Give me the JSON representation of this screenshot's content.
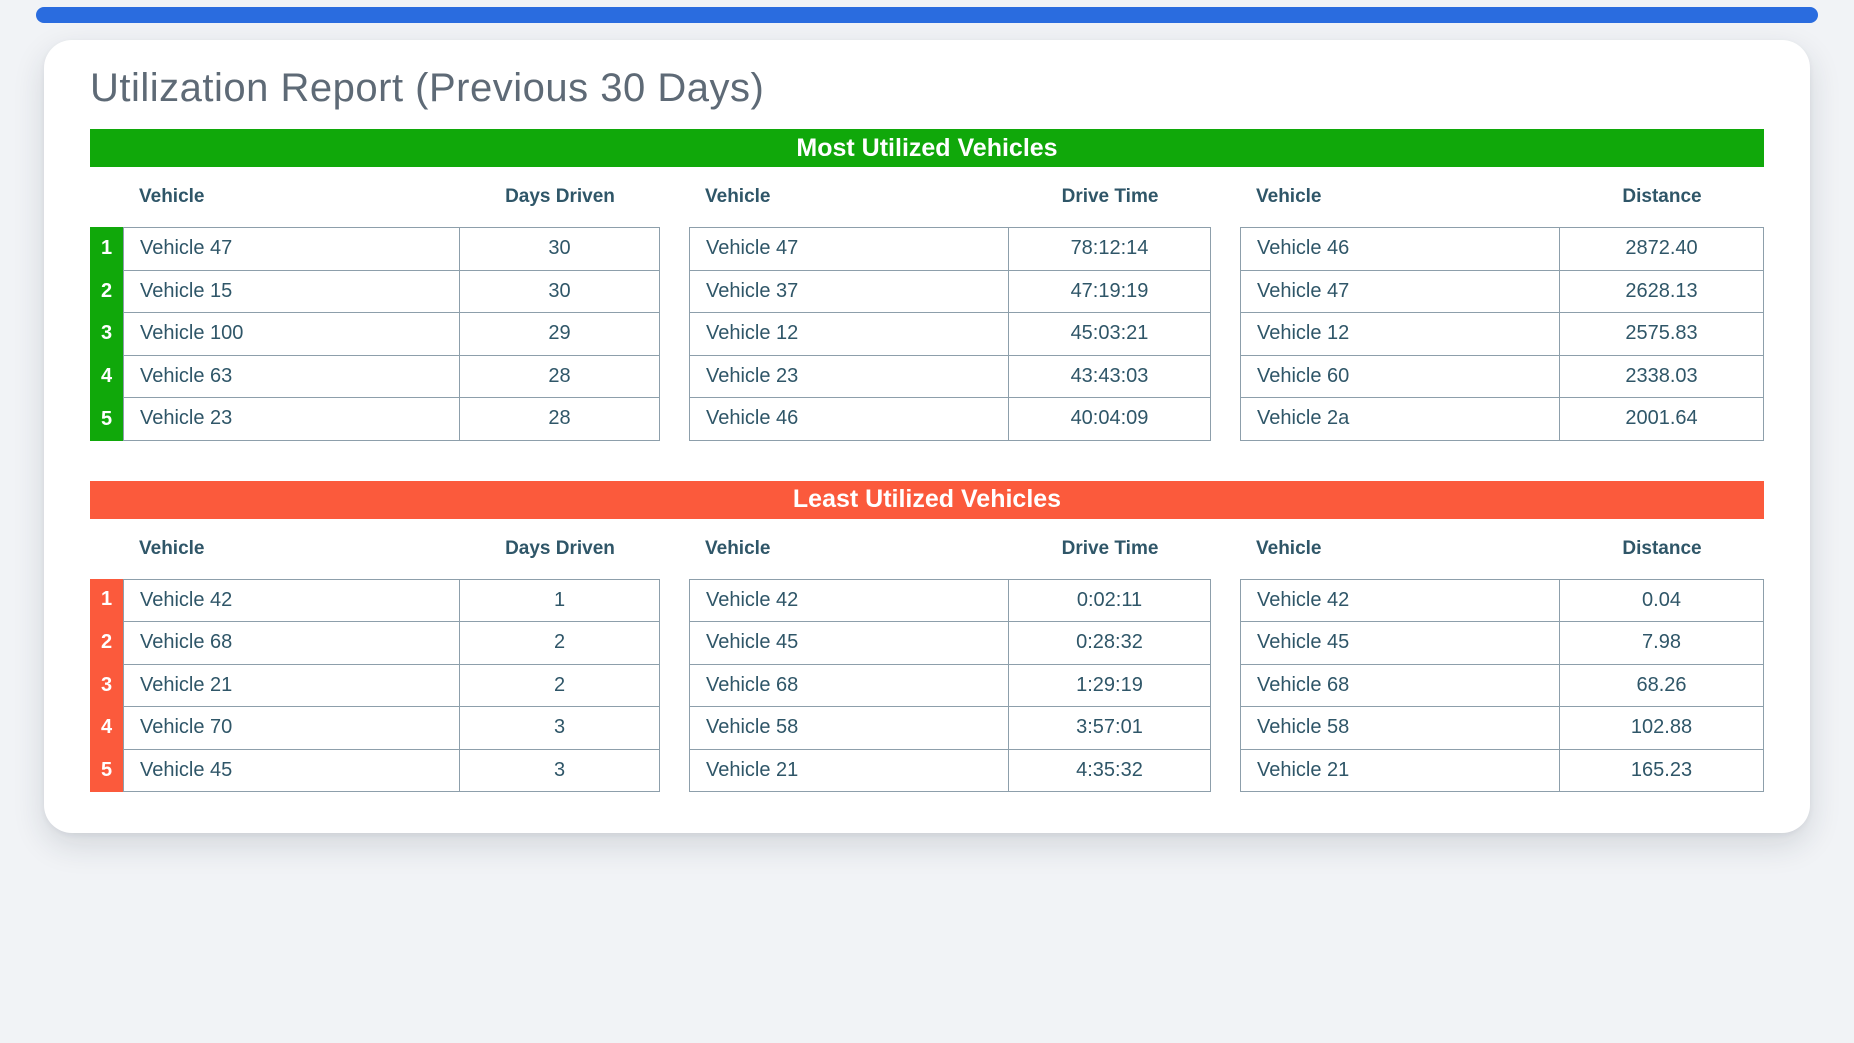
{
  "page": {
    "title": "Utilization Report (Previous 30 Days)"
  },
  "colors": {
    "top_bar_blue": "#2a6cdf",
    "most_accent_green": "#10a80a",
    "least_accent_orange": "#fb5a3c",
    "text_dark": "#2f5668",
    "title_gray": "#5e6a76",
    "table_border": "#8d9fab"
  },
  "ranks": [
    "1",
    "2",
    "3",
    "4",
    "5"
  ],
  "sections": [
    {
      "id": "most-utilized",
      "title": "Most Utilized Vehicles",
      "accent": "#10a80a",
      "tables": [
        {
          "key": "days-driven",
          "headers": [
            "Vehicle",
            "Days Driven"
          ],
          "ranked": true,
          "rows": [
            [
              "Vehicle 47",
              "30"
            ],
            [
              "Vehicle 15",
              "30"
            ],
            [
              "Vehicle 100",
              "29"
            ],
            [
              "Vehicle 63",
              "28"
            ],
            [
              "Vehicle 23",
              "28"
            ]
          ]
        },
        {
          "key": "drive-time",
          "headers": [
            "Vehicle",
            "Drive Time"
          ],
          "ranked": false,
          "rows": [
            [
              "Vehicle 47",
              "78:12:14"
            ],
            [
              "Vehicle 37",
              "47:19:19"
            ],
            [
              "Vehicle 12",
              "45:03:21"
            ],
            [
              "Vehicle 23",
              "43:43:03"
            ],
            [
              "Vehicle 46",
              "40:04:09"
            ]
          ]
        },
        {
          "key": "distance",
          "headers": [
            "Vehicle",
            "Distance"
          ],
          "ranked": false,
          "rows": [
            [
              "Vehicle 46",
              "2872.40"
            ],
            [
              "Vehicle 47",
              "2628.13"
            ],
            [
              "Vehicle 12",
              "2575.83"
            ],
            [
              "Vehicle 60",
              "2338.03"
            ],
            [
              "Vehicle 2a",
              "2001.64"
            ]
          ]
        }
      ]
    },
    {
      "id": "least-utilized",
      "title": "Least Utilized Vehicles",
      "accent": "#fb5a3c",
      "tables": [
        {
          "key": "days-driven",
          "headers": [
            "Vehicle",
            "Days Driven"
          ],
          "ranked": true,
          "rows": [
            [
              "Vehicle 42",
              "1"
            ],
            [
              "Vehicle 68",
              "2"
            ],
            [
              "Vehicle 21",
              "2"
            ],
            [
              "Vehicle 70",
              "3"
            ],
            [
              "Vehicle 45",
              "3"
            ]
          ]
        },
        {
          "key": "drive-time",
          "headers": [
            "Vehicle",
            "Drive Time"
          ],
          "ranked": false,
          "rows": [
            [
              "Vehicle 42",
              "0:02:11"
            ],
            [
              "Vehicle 45",
              "0:28:32"
            ],
            [
              "Vehicle 68",
              "1:29:19"
            ],
            [
              "Vehicle 58",
              "3:57:01"
            ],
            [
              "Vehicle 21",
              "4:35:32"
            ]
          ]
        },
        {
          "key": "distance",
          "headers": [
            "Vehicle",
            "Distance"
          ],
          "ranked": false,
          "rows": [
            [
              "Vehicle 42",
              "0.04"
            ],
            [
              "Vehicle 45",
              "7.98"
            ],
            [
              "Vehicle 68",
              "68.26"
            ],
            [
              "Vehicle 58",
              "102.88"
            ],
            [
              "Vehicle 21",
              "165.23"
            ]
          ]
        }
      ]
    }
  ]
}
